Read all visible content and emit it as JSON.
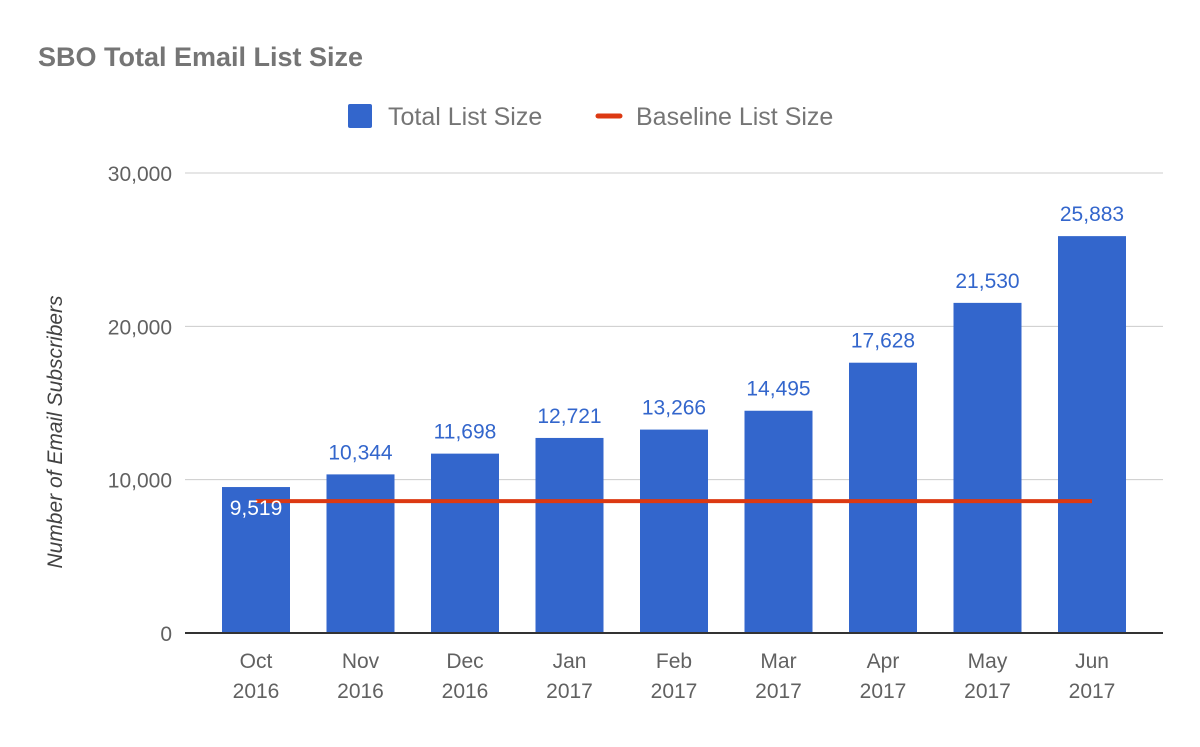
{
  "chart_data": {
    "type": "bar",
    "title": "SBO Total Email List Size",
    "xlabel": "",
    "ylabel": "Number of Email Subscribers",
    "ylim": [
      0,
      30000
    ],
    "y_ticks": [
      0,
      10000,
      20000,
      30000
    ],
    "y_tick_labels": [
      "0",
      "10,000",
      "20,000",
      "30,000"
    ],
    "grid": true,
    "legend_position": "top",
    "categories": [
      [
        "Oct",
        "2016"
      ],
      [
        "Nov",
        "2016"
      ],
      [
        "Dec",
        "2016"
      ],
      [
        "Jan",
        "2017"
      ],
      [
        "Feb",
        "2017"
      ],
      [
        "Mar",
        "2017"
      ],
      [
        "Apr",
        "2017"
      ],
      [
        "May",
        "2017"
      ],
      [
        "Jun",
        "2017"
      ]
    ],
    "series": [
      {
        "name": "Total List Size",
        "kind": "bar",
        "color": "#3366cc",
        "values": [
          9519,
          10344,
          11698,
          12721,
          13266,
          14495,
          17628,
          21530,
          25883
        ],
        "data_labels": [
          "9,519",
          "10,344",
          "11,698",
          "12,721",
          "13,266",
          "14,495",
          "17,628",
          "21,530",
          "25,883"
        ]
      },
      {
        "name": "Baseline List Size",
        "kind": "line",
        "color": "#dc3912",
        "values": [
          8600,
          8600,
          8600,
          8600,
          8600,
          8600,
          8600,
          8600,
          8600
        ]
      }
    ]
  }
}
